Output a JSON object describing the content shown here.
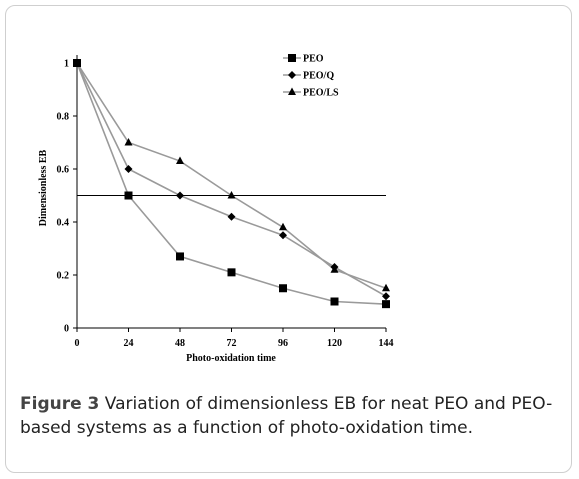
{
  "chart_data": {
    "type": "line",
    "title": "",
    "xlabel": "Photo-oxidation time",
    "ylabel": "Dimensionless EB",
    "x": [
      0,
      24,
      48,
      72,
      96,
      120,
      144
    ],
    "x_ticks": [
      "0",
      "24",
      "48",
      "72",
      "96",
      "120",
      "144"
    ],
    "y_ticks": [
      "0",
      "0.2",
      "0.4",
      "0.6",
      "0.8",
      "1"
    ],
    "xlim": [
      0,
      144
    ],
    "ylim": [
      0,
      1
    ],
    "grid": false,
    "legend_position": "top-right",
    "reference_line": {
      "y": 0.5
    },
    "series": [
      {
        "name": "PEO",
        "marker": "square",
        "values": [
          1,
          0.5,
          0.27,
          0.21,
          0.15,
          0.1,
          0.09
        ]
      },
      {
        "name": "PEO/Q",
        "marker": "diamond",
        "values": [
          1,
          0.6,
          0.5,
          0.42,
          0.35,
          0.23,
          0.12
        ]
      },
      {
        "name": "PEO/LS",
        "marker": "triangle",
        "values": [
          1,
          0.7,
          0.63,
          0.5,
          0.38,
          0.22,
          0.15
        ]
      }
    ],
    "colors": {
      "line": "#9a9a9a",
      "marker": "#000000",
      "axis": "#000000"
    }
  },
  "caption": {
    "label": "Figure 3",
    "text": " Variation of dimensionless EB for neat PEO and PEO-based systems as a function of photo-oxidation time."
  }
}
